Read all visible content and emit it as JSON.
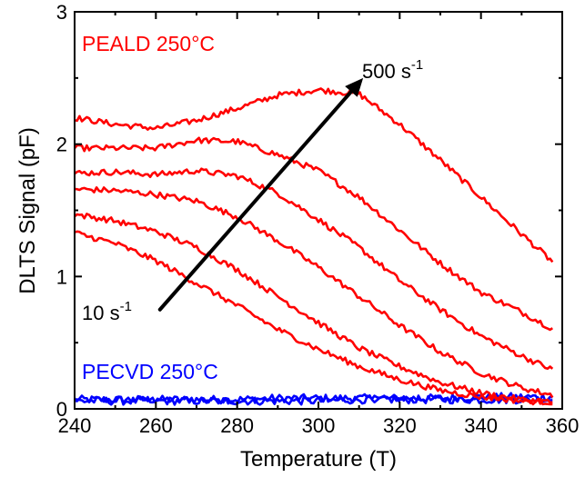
{
  "chart_data": {
    "type": "line",
    "xlabel": "Temperature (T)",
    "ylabel": "DLTS Signal (pF)",
    "xlim": [
      240,
      360
    ],
    "ylim": [
      0,
      3
    ],
    "xticks": [
      240,
      260,
      280,
      300,
      320,
      340,
      360
    ],
    "yticks": [
      0,
      1,
      2,
      3
    ],
    "x_tick_labels": [
      "240",
      "260",
      "280",
      "300",
      "320",
      "340",
      "360"
    ],
    "y_tick_labels": [
      "0",
      "1",
      "2",
      "3"
    ],
    "grid": false,
    "x": [
      240,
      250,
      260,
      270,
      280,
      290,
      300,
      310,
      320,
      330,
      340,
      350,
      358
    ],
    "series": [
      {
        "group": "PEALD 250°C",
        "color": "#ff0000",
        "values": [
          2.2,
          2.15,
          2.12,
          2.18,
          2.27,
          2.37,
          2.41,
          2.38,
          2.15,
          1.88,
          1.6,
          1.32,
          1.1
        ]
      },
      {
        "group": "PEALD 250°C",
        "color": "#ff0000",
        "values": [
          1.97,
          1.97,
          1.97,
          2.03,
          2.02,
          1.92,
          1.8,
          1.6,
          1.35,
          1.1,
          0.88,
          0.73,
          0.6
        ]
      },
      {
        "group": "PEALD 250°C",
        "color": "#ff0000",
        "values": [
          1.78,
          1.79,
          1.77,
          1.8,
          1.76,
          1.63,
          1.43,
          1.22,
          0.97,
          0.75,
          0.55,
          0.4,
          0.29
        ]
      },
      {
        "group": "PEALD 250°C",
        "color": "#ff0000",
        "values": [
          1.66,
          1.65,
          1.62,
          1.57,
          1.45,
          1.27,
          1.07,
          0.85,
          0.63,
          0.43,
          0.27,
          0.16,
          0.1
        ]
      },
      {
        "group": "PEALD 250°C",
        "color": "#ff0000",
        "values": [
          1.47,
          1.42,
          1.34,
          1.22,
          1.05,
          0.85,
          0.65,
          0.46,
          0.32,
          0.2,
          0.12,
          0.07,
          0.05
        ]
      },
      {
        "group": "PEALD 250°C",
        "color": "#ff0000",
        "values": [
          1.33,
          1.25,
          1.12,
          0.95,
          0.78,
          0.6,
          0.45,
          0.32,
          0.22,
          0.14,
          0.09,
          0.06,
          0.05
        ]
      },
      {
        "group": "PECVD 250°C",
        "color": "#0000ff",
        "values": [
          0.07,
          0.07,
          0.07,
          0.07,
          0.07,
          0.08,
          0.08,
          0.08,
          0.08,
          0.08,
          0.09,
          0.09,
          0.09
        ]
      },
      {
        "group": "PECVD 250°C",
        "color": "#0000ff",
        "values": [
          0.06,
          0.06,
          0.06,
          0.06,
          0.06,
          0.06,
          0.06,
          0.07,
          0.07,
          0.07,
          0.07,
          0.07,
          0.07
        ]
      }
    ],
    "legend": [
      {
        "text": "PEALD 250°C",
        "color": "#ff0000",
        "placement": "top-left"
      },
      {
        "text": "PECVD 250°C",
        "color": "#0000ff",
        "placement": "bottom-left"
      }
    ],
    "annotations": {
      "arrow": {
        "from": [
          261,
          0.75
        ],
        "to": [
          311,
          2.5
        ]
      },
      "start_label": {
        "base": "10 s",
        "exp": "-1"
      },
      "end_label": {
        "base": "500 s",
        "exp": "-1"
      }
    }
  }
}
